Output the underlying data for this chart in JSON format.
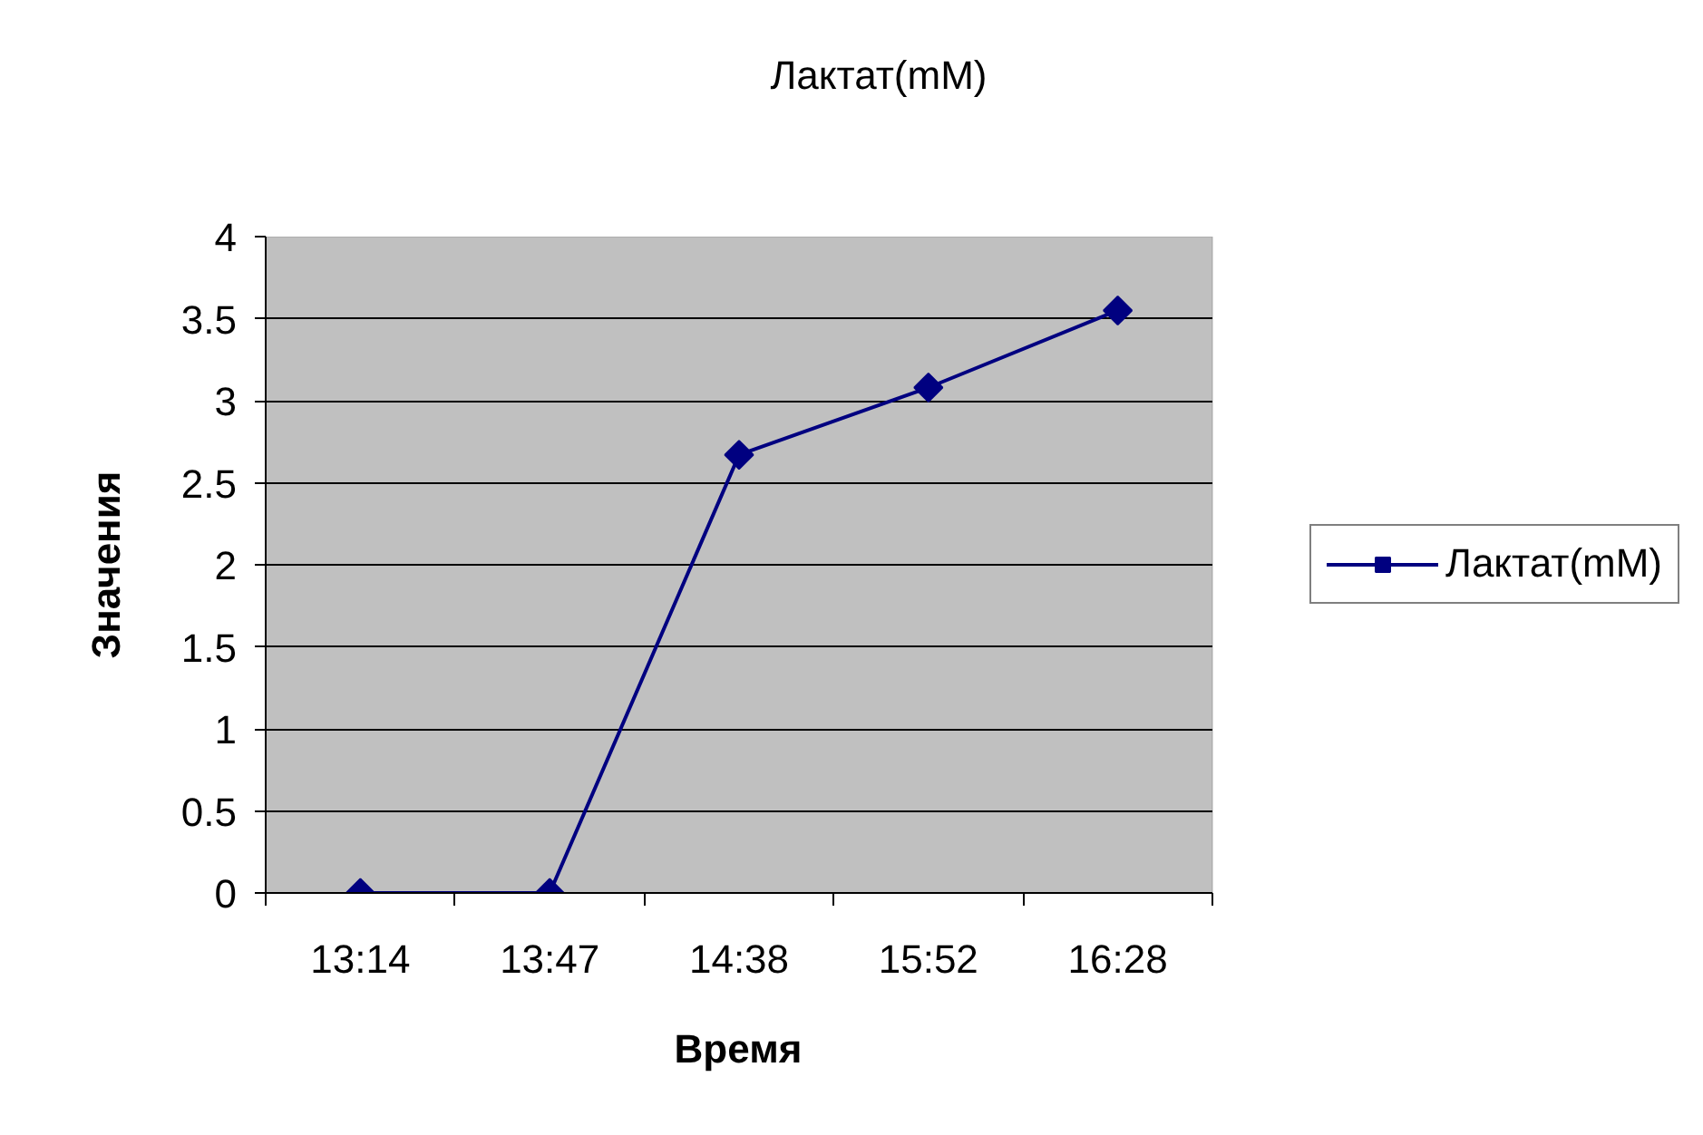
{
  "chart_data": {
    "type": "line",
    "title": "Лактат(mM)",
    "xlabel": "Время",
    "ylabel": "Значения",
    "categories": [
      "13:14",
      "13:47",
      "14:38",
      "15:52",
      "16:28"
    ],
    "series": [
      {
        "name": "Лактат(mM)",
        "color": "#000080",
        "values": [
          0,
          0,
          2.67,
          3.08,
          3.55
        ]
      }
    ],
    "ylim": [
      0,
      4
    ],
    "yticks": [
      0,
      0.5,
      1,
      1.5,
      2,
      2.5,
      3,
      3.5,
      4
    ],
    "grid": "y",
    "legend": "right",
    "marker": "diamond",
    "line_style": "solid"
  }
}
